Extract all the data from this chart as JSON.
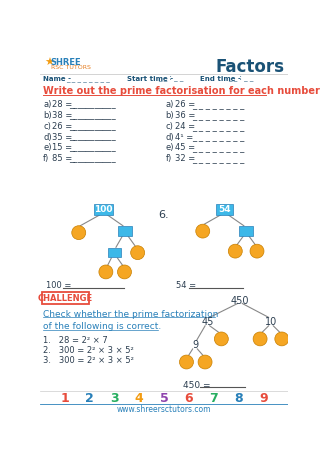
{
  "title": "Factors",
  "section1_title": "Write out the prime factorisation for each number:",
  "left_problems": [
    [
      "a)",
      "28 =",
      "___________"
    ],
    [
      "b)",
      "38 =",
      "___________"
    ],
    [
      "c)",
      "26 =",
      "___________"
    ],
    [
      "d)",
      "35 =",
      "___________"
    ],
    [
      "e)",
      "15 =",
      "___________"
    ],
    [
      "f)",
      "85 =",
      "___________"
    ]
  ],
  "right_problems": [
    [
      "a)",
      "26 =",
      "_ _ _ _ _ _ _ _"
    ],
    [
      "b)",
      "36 =",
      "_ _ _ _ _ _ _ _"
    ],
    [
      "c)",
      "24 =",
      "_ _ _ _ _ _ _ _"
    ],
    [
      "d)",
      "4¹ =",
      "_ _ _ _ _ _ _ _"
    ],
    [
      "e)",
      "45 =",
      "_ _ _ _ _ _ _ _"
    ],
    [
      "f)",
      "32 =",
      "_ _ _ _ _ _ _ _"
    ]
  ],
  "tree1_root": "100",
  "tree2_root": "54",
  "tree_number_label": "6.",
  "eq1": "100 =",
  "eq2": "54 =",
  "challenge_text": "CHALLENGE",
  "challenge_desc1": "Check whether the prime factorization",
  "challenge_desc2": "of the following is correct.",
  "challenge_items": [
    "1.   28 = 2² × 7",
    "2.   300 = 2² × 3 × 5²",
    "3.   300 = 2² × 3 × 5²"
  ],
  "tree3_root": "450",
  "tree3_l1": "45",
  "tree3_r1": "10",
  "tree3_ll": "9",
  "eq3": "450 =",
  "footer_numbers": [
    "1",
    "2",
    "3",
    "4",
    "5",
    "6",
    "7",
    "8",
    "9"
  ],
  "footer_colors": [
    "#e74c3c",
    "#2980b9",
    "#27ae60",
    "#f39c12",
    "#8e44ad",
    "#e74c3c",
    "#27ae60",
    "#2980b9",
    "#e74c3c"
  ],
  "website": "www.shreersctutors.com",
  "bg_color": "#ffffff",
  "blue_box_color": "#3db8e8",
  "orange_circle_color": "#f5a623",
  "red_color": "#e74c3c",
  "blue_text_color": "#2980b9",
  "dark_text": "#2c3e50",
  "title_color": "#1a5276",
  "line_color": "#aaaaaa"
}
